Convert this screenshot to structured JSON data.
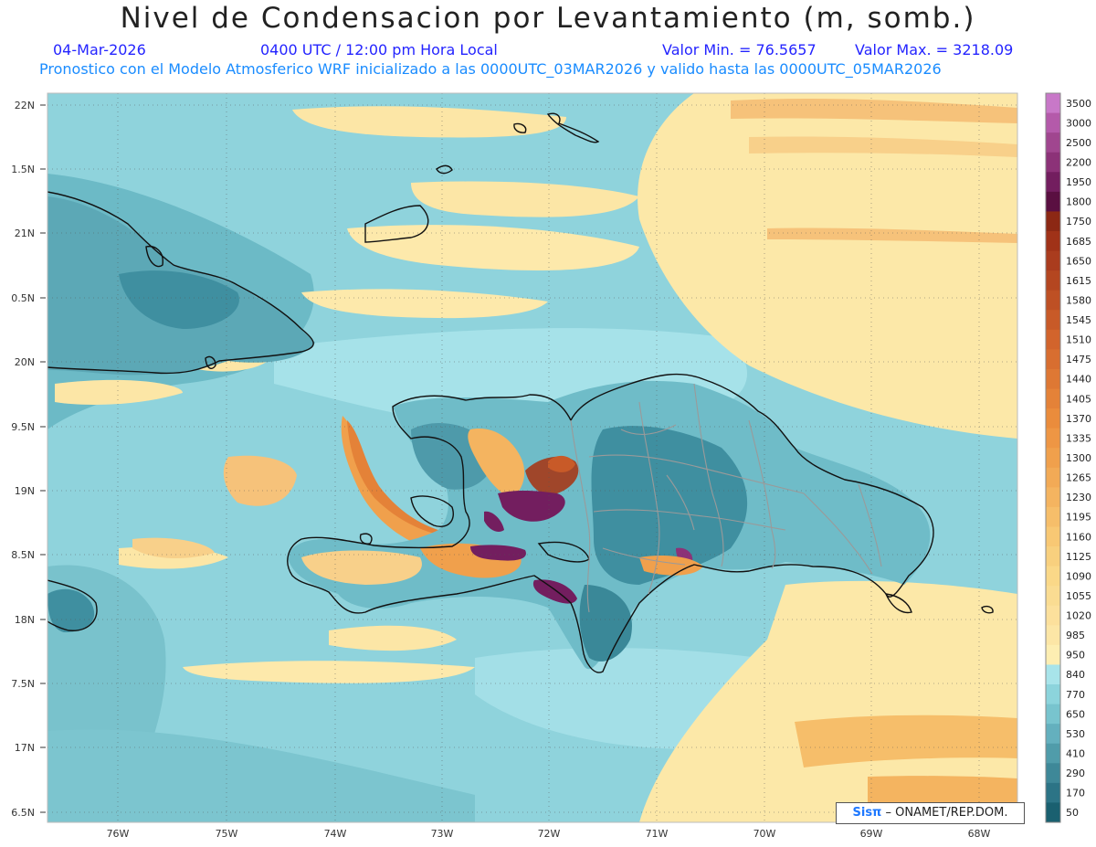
{
  "header": {
    "title": "Nivel de Condensacion por Levantamiento (m, somb.)",
    "date": "04-Mar-2026",
    "time": "0400 UTC / 12:00 pm Hora Local",
    "valmin": "Valor Min. = 76.5657",
    "valmax": "Valor Max. = 3218.09",
    "model_line": "Pronostico con el Modelo Atmosferico WRF inicializado a las 0000UTC_03MAR2026 y valido hasta las  0000UTC_05MAR2026"
  },
  "axes": {
    "lat_labels": [
      "22N",
      "1.5N",
      "21N",
      "0.5N",
      "20N",
      "9.5N",
      "19N",
      "8.5N",
      "18N",
      "7.5N",
      "17N",
      "6.5N"
    ],
    "lon_labels": [
      "76W",
      "75W",
      "74W",
      "73W",
      "72W",
      "71W",
      "70W",
      "69W",
      "68W"
    ]
  },
  "colorbar": {
    "labels": [
      "3500",
      "3000",
      "2500",
      "2200",
      "1950",
      "1800",
      "1750",
      "1685",
      "1650",
      "1615",
      "1580",
      "1545",
      "1510",
      "1475",
      "1440",
      "1405",
      "1370",
      "1335",
      "1300",
      "1265",
      "1230",
      "1195",
      "1160",
      "1125",
      "1090",
      "1055",
      "1020",
      "985",
      "950",
      "840",
      "770",
      "650",
      "530",
      "410",
      "290",
      "170",
      "50"
    ],
    "colors": [
      "#c878c8",
      "#b45aaa",
      "#a0468f",
      "#8c3278",
      "#731e5f",
      "#5a0f41",
      "#8c2814",
      "#a03218",
      "#aa3c1e",
      "#b44620",
      "#be5024",
      "#c85a28",
      "#d2642c",
      "#d86e30",
      "#de7834",
      "#e48238",
      "#ea8c3c",
      "#ee9644",
      "#f0a04c",
      "#f2aa56",
      "#f4b460",
      "#f6be6a",
      "#f8c874",
      "#f8d07e",
      "#fad888",
      "#fadc92",
      "#fce09c",
      "#fce6a6",
      "#fdeeb2",
      "#a8e4ea",
      "#8cd4dc",
      "#78c4ce",
      "#64b0be",
      "#509caa",
      "#3e8898",
      "#2c7486",
      "#1a6070"
    ]
  },
  "credit": {
    "brand": "Sisπ",
    "text": " – ONAMET/REP.DOM."
  },
  "icons": [
    "sistpi-logo-icon"
  ]
}
